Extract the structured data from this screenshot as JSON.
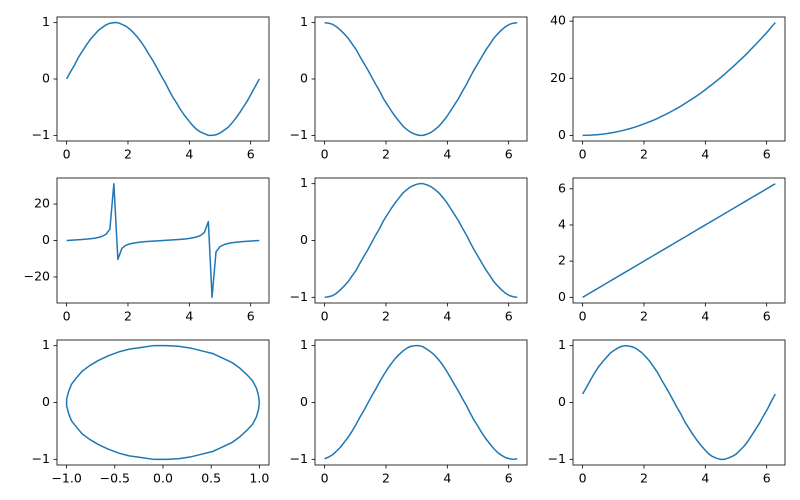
{
  "chart_data": [
    {
      "type": "line",
      "color": "#1f77b4",
      "x": [
        0,
        0.13,
        0.26,
        0.38,
        0.51,
        0.64,
        0.77,
        0.9,
        1.03,
        1.15,
        1.28,
        1.41,
        1.54,
        1.67,
        1.8,
        1.92,
        2.05,
        2.18,
        2.31,
        2.44,
        2.56,
        2.69,
        2.82,
        2.95,
        3.08,
        3.21,
        3.33,
        3.46,
        3.59,
        3.72,
        3.85,
        3.98,
        4.1,
        4.23,
        4.36,
        4.49,
        4.62,
        4.74,
        4.87,
        5.0,
        5.13,
        5.26,
        5.39,
        5.51,
        5.64,
        5.77,
        5.9,
        6.03,
        6.15,
        6.28
      ],
      "values": [
        0,
        0.13,
        0.25,
        0.38,
        0.49,
        0.6,
        0.7,
        0.78,
        0.86,
        0.91,
        0.96,
        0.99,
        1.0,
        1.0,
        0.97,
        0.94,
        0.89,
        0.82,
        0.74,
        0.65,
        0.55,
        0.43,
        0.32,
        0.19,
        0.06,
        -0.06,
        -0.19,
        -0.32,
        -0.43,
        -0.55,
        -0.65,
        -0.74,
        -0.82,
        -0.89,
        -0.94,
        -0.97,
        -1.0,
        -1.0,
        -0.99,
        -0.96,
        -0.91,
        -0.86,
        -0.78,
        -0.7,
        -0.6,
        -0.49,
        -0.38,
        -0.25,
        -0.13,
        0
      ],
      "xlim": [
        -0.314,
        6.597
      ],
      "ylim": [
        -1.1,
        1.1
      ],
      "xticks": [
        0,
        2,
        4,
        6
      ],
      "yticks": [
        {
          "value": -1,
          "label": "−1"
        },
        0,
        1
      ]
    },
    {
      "type": "line",
      "color": "#1f77b4",
      "x": [
        0,
        0.13,
        0.26,
        0.38,
        0.51,
        0.64,
        0.77,
        0.9,
        1.03,
        1.15,
        1.28,
        1.41,
        1.54,
        1.67,
        1.8,
        1.92,
        2.05,
        2.18,
        2.31,
        2.44,
        2.56,
        2.69,
        2.82,
        2.95,
        3.08,
        3.21,
        3.33,
        3.46,
        3.59,
        3.72,
        3.85,
        3.98,
        4.1,
        4.23,
        4.36,
        4.49,
        4.62,
        4.74,
        4.87,
        5.0,
        5.13,
        5.26,
        5.39,
        5.51,
        5.64,
        5.77,
        5.9,
        6.03,
        6.15,
        6.28
      ],
      "values": [
        1,
        0.99,
        0.97,
        0.93,
        0.87,
        0.8,
        0.72,
        0.62,
        0.52,
        0.4,
        0.28,
        0.16,
        0.03,
        -0.1,
        -0.22,
        -0.35,
        -0.46,
        -0.57,
        -0.67,
        -0.76,
        -0.84,
        -0.9,
        -0.95,
        -0.98,
        -1.0,
        -1.0,
        -0.98,
        -0.95,
        -0.9,
        -0.84,
        -0.76,
        -0.67,
        -0.57,
        -0.46,
        -0.35,
        -0.22,
        -0.1,
        0.03,
        0.16,
        0.28,
        0.4,
        0.52,
        0.62,
        0.72,
        0.8,
        0.87,
        0.93,
        0.97,
        0.99,
        1
      ],
      "xlim": [
        -0.314,
        6.597
      ],
      "ylim": [
        -1.1,
        1.1
      ],
      "xticks": [
        0,
        2,
        4,
        6
      ],
      "yticks": [
        {
          "value": -1,
          "label": "−1"
        },
        0,
        1
      ]
    },
    {
      "type": "line",
      "color": "#1f77b4",
      "x": [
        0,
        0.13,
        0.26,
        0.38,
        0.51,
        0.64,
        0.77,
        0.9,
        1.03,
        1.15,
        1.28,
        1.41,
        1.54,
        1.67,
        1.8,
        1.92,
        2.05,
        2.18,
        2.31,
        2.44,
        2.56,
        2.69,
        2.82,
        2.95,
        3.08,
        3.21,
        3.33,
        3.46,
        3.59,
        3.72,
        3.85,
        3.98,
        4.1,
        4.23,
        4.36,
        4.49,
        4.62,
        4.74,
        4.87,
        5.0,
        5.13,
        5.26,
        5.39,
        5.51,
        5.64,
        5.77,
        5.9,
        6.03,
        6.15,
        6.28
      ],
      "values": [
        0,
        0.02,
        0.07,
        0.15,
        0.26,
        0.41,
        0.59,
        0.81,
        1.05,
        1.33,
        1.64,
        1.99,
        2.37,
        2.78,
        3.22,
        3.7,
        4.21,
        4.75,
        5.33,
        5.94,
        6.58,
        7.25,
        7.96,
        8.7,
        9.47,
        10.28,
        11.11,
        11.99,
        12.89,
        13.83,
        14.8,
        15.8,
        16.84,
        17.91,
        19.01,
        20.14,
        21.31,
        22.51,
        23.74,
        25.01,
        26.31,
        27.64,
        29.0,
        30.4,
        31.83,
        33.3,
        34.79,
        36.32,
        37.88,
        39.48
      ],
      "xlim": [
        -0.314,
        6.597
      ],
      "ylim": [
        -1.974,
        41.45
      ],
      "xticks": [
        0,
        2,
        4,
        6
      ],
      "yticks": [
        0,
        20,
        40
      ]
    },
    {
      "type": "line",
      "color": "#1f77b4",
      "x": [
        0,
        0.13,
        0.26,
        0.38,
        0.51,
        0.64,
        0.77,
        0.9,
        1.03,
        1.15,
        1.28,
        1.41,
        1.54,
        1.67,
        1.8,
        1.92,
        2.05,
        2.18,
        2.31,
        2.44,
        2.56,
        2.69,
        2.82,
        2.95,
        3.08,
        3.21,
        3.33,
        3.46,
        3.59,
        3.72,
        3.85,
        3.98,
        4.1,
        4.23,
        4.36,
        4.49,
        4.62,
        4.74,
        4.87,
        5.0,
        5.13,
        5.26,
        5.39,
        5.51,
        5.64,
        5.77,
        5.9,
        6.03,
        6.15,
        6.28
      ],
      "values": [
        0,
        0.13,
        0.26,
        0.4,
        0.56,
        0.75,
        0.97,
        1.25,
        1.65,
        2.26,
        3.37,
        6.19,
        31.18,
        -10.37,
        -4.38,
        -2.72,
        -1.92,
        -1.43,
        -1.1,
        -0.85,
        -0.65,
        -0.48,
        -0.33,
        -0.19,
        -0.06,
        0.06,
        0.19,
        0.33,
        0.48,
        0.65,
        0.85,
        1.1,
        1.43,
        1.92,
        2.72,
        4.38,
        10.37,
        -31.18,
        -6.19,
        -3.37,
        -2.26,
        -1.65,
        -1.25,
        -0.97,
        -0.75,
        -0.56,
        -0.4,
        -0.26,
        -0.13,
        0
      ],
      "xlim": [
        -0.314,
        6.597
      ],
      "ylim": [
        -34.3,
        34.3
      ],
      "xticks": [
        0,
        2,
        4,
        6
      ],
      "yticks": [
        {
          "value": -20,
          "label": "−20"
        },
        0,
        20
      ]
    },
    {
      "type": "line",
      "color": "#1f77b4",
      "x": [
        0,
        0.13,
        0.26,
        0.38,
        0.51,
        0.64,
        0.77,
        0.9,
        1.03,
        1.15,
        1.28,
        1.41,
        1.54,
        1.67,
        1.8,
        1.92,
        2.05,
        2.18,
        2.31,
        2.44,
        2.56,
        2.69,
        2.82,
        2.95,
        3.08,
        3.21,
        3.33,
        3.46,
        3.59,
        3.72,
        3.85,
        3.98,
        4.1,
        4.23,
        4.36,
        4.49,
        4.62,
        4.74,
        4.87,
        5.0,
        5.13,
        5.26,
        5.39,
        5.51,
        5.64,
        5.77,
        5.9,
        6.03,
        6.15,
        6.28
      ],
      "values": [
        -1,
        -0.99,
        -0.97,
        -0.93,
        -0.87,
        -0.8,
        -0.72,
        -0.62,
        -0.52,
        -0.4,
        -0.28,
        -0.16,
        -0.03,
        0.1,
        0.22,
        0.35,
        0.46,
        0.57,
        0.67,
        0.76,
        0.84,
        0.9,
        0.95,
        0.98,
        1.0,
        1.0,
        0.98,
        0.95,
        0.9,
        0.84,
        0.76,
        0.67,
        0.57,
        0.46,
        0.35,
        0.22,
        0.1,
        -0.03,
        -0.16,
        -0.28,
        -0.4,
        -0.52,
        -0.62,
        -0.72,
        -0.8,
        -0.87,
        -0.93,
        -0.97,
        -0.99,
        -1
      ],
      "xlim": [
        -0.314,
        6.597
      ],
      "ylim": [
        -1.1,
        1.1
      ],
      "xticks": [
        0,
        2,
        4,
        6
      ],
      "yticks": [
        {
          "value": -1,
          "label": "−1"
        },
        0,
        1
      ]
    },
    {
      "type": "line",
      "color": "#1f77b4",
      "x": [
        0,
        0.13,
        0.26,
        0.38,
        0.51,
        0.64,
        0.77,
        0.9,
        1.03,
        1.15,
        1.28,
        1.41,
        1.54,
        1.67,
        1.8,
        1.92,
        2.05,
        2.18,
        2.31,
        2.44,
        2.56,
        2.69,
        2.82,
        2.95,
        3.08,
        3.21,
        3.33,
        3.46,
        3.59,
        3.72,
        3.85,
        3.98,
        4.1,
        4.23,
        4.36,
        4.49,
        4.62,
        4.74,
        4.87,
        5.0,
        5.13,
        5.26,
        5.39,
        5.51,
        5.64,
        5.77,
        5.9,
        6.03,
        6.15,
        6.28
      ],
      "values": [
        0,
        0.13,
        0.26,
        0.38,
        0.51,
        0.64,
        0.77,
        0.9,
        1.03,
        1.15,
        1.28,
        1.41,
        1.54,
        1.67,
        1.8,
        1.92,
        2.05,
        2.18,
        2.31,
        2.44,
        2.56,
        2.69,
        2.82,
        2.95,
        3.08,
        3.21,
        3.33,
        3.46,
        3.59,
        3.72,
        3.85,
        3.98,
        4.1,
        4.23,
        4.36,
        4.49,
        4.62,
        4.74,
        4.87,
        5.0,
        5.13,
        5.26,
        5.39,
        5.51,
        5.64,
        5.77,
        5.9,
        6.03,
        6.15,
        6.28
      ],
      "xlim": [
        -0.314,
        6.597
      ],
      "ylim": [
        -0.314,
        6.597
      ],
      "xticks": [
        0,
        2,
        4,
        6
      ],
      "yticks": [
        0,
        2,
        4,
        6
      ]
    },
    {
      "type": "line",
      "color": "#1f77b4",
      "x": [
        1,
        0.99,
        0.97,
        0.93,
        0.87,
        0.8,
        0.72,
        0.62,
        0.52,
        0.4,
        0.28,
        0.16,
        0.03,
        -0.1,
        -0.22,
        -0.35,
        -0.46,
        -0.57,
        -0.67,
        -0.76,
        -0.84,
        -0.9,
        -0.95,
        -0.98,
        -1.0,
        -1.0,
        -0.98,
        -0.95,
        -0.9,
        -0.84,
        -0.76,
        -0.67,
        -0.57,
        -0.46,
        -0.35,
        -0.22,
        -0.1,
        0.03,
        0.16,
        0.28,
        0.4,
        0.52,
        0.62,
        0.72,
        0.8,
        0.87,
        0.93,
        0.97,
        0.99,
        1
      ],
      "values": [
        0,
        0.13,
        0.25,
        0.38,
        0.49,
        0.6,
        0.7,
        0.78,
        0.86,
        0.91,
        0.96,
        0.99,
        1.0,
        1.0,
        0.97,
        0.94,
        0.89,
        0.82,
        0.74,
        0.65,
        0.55,
        0.43,
        0.32,
        0.19,
        0.06,
        -0.06,
        -0.19,
        -0.32,
        -0.43,
        -0.55,
        -0.65,
        -0.74,
        -0.82,
        -0.89,
        -0.94,
        -0.97,
        -1.0,
        -1.0,
        -0.99,
        -0.96,
        -0.91,
        -0.86,
        -0.78,
        -0.7,
        -0.6,
        -0.49,
        -0.38,
        -0.25,
        -0.13,
        0
      ],
      "xlim": [
        -1.1,
        1.1
      ],
      "ylim": [
        -1.1,
        1.1
      ],
      "xticks": [
        {
          "value": -1,
          "label": "−1.0"
        },
        {
          "value": -0.5,
          "label": "−0.5"
        },
        {
          "value": 0,
          "label": "0.0"
        },
        {
          "value": 0.5,
          "label": "0.5"
        },
        {
          "value": 1,
          "label": "1.0"
        }
      ],
      "yticks": [
        {
          "value": -1,
          "label": "−1"
        },
        0,
        1
      ]
    },
    {
      "type": "line",
      "color": "#1f77b4",
      "x": [
        0,
        0.13,
        0.26,
        0.38,
        0.51,
        0.64,
        0.77,
        0.9,
        1.03,
        1.15,
        1.28,
        1.41,
        1.54,
        1.67,
        1.8,
        1.92,
        2.05,
        2.18,
        2.31,
        2.44,
        2.56,
        2.69,
        2.82,
        2.95,
        3.08,
        3.21,
        3.33,
        3.46,
        3.59,
        3.72,
        3.85,
        3.98,
        4.1,
        4.23,
        4.36,
        4.49,
        4.62,
        4.74,
        4.87,
        5.0,
        5.13,
        5.26,
        5.39,
        5.51,
        5.64,
        5.77,
        5.9,
        6.03,
        6.15,
        6.28
      ],
      "values": [
        -0.99,
        -0.96,
        -0.92,
        -0.86,
        -0.79,
        -0.7,
        -0.61,
        -0.5,
        -0.38,
        -0.26,
        -0.14,
        -0.01,
        0.12,
        0.24,
        0.37,
        0.48,
        0.59,
        0.69,
        0.78,
        0.85,
        0.91,
        0.96,
        0.99,
        1.0,
        1.0,
        0.98,
        0.94,
        0.89,
        0.83,
        0.75,
        0.66,
        0.55,
        0.44,
        0.32,
        0.2,
        0.07,
        -0.05,
        -0.18,
        -0.31,
        -0.42,
        -0.54,
        -0.64,
        -0.73,
        -0.81,
        -0.88,
        -0.93,
        -0.97,
        -0.99,
        -1.0,
        -0.99
      ],
      "xlim": [
        -0.314,
        6.597
      ],
      "ylim": [
        -1.1,
        1.1
      ],
      "xticks": [
        0,
        2,
        4,
        6
      ],
      "yticks": [
        {
          "value": -1,
          "label": "−1"
        },
        0,
        1
      ]
    },
    {
      "type": "line",
      "color": "#1f77b4",
      "x": [
        0,
        0.13,
        0.26,
        0.38,
        0.51,
        0.64,
        0.77,
        0.9,
        1.03,
        1.15,
        1.28,
        1.41,
        1.54,
        1.67,
        1.8,
        1.92,
        2.05,
        2.18,
        2.31,
        2.44,
        2.56,
        2.69,
        2.82,
        2.95,
        3.08,
        3.21,
        3.33,
        3.46,
        3.59,
        3.72,
        3.85,
        3.98,
        4.1,
        4.23,
        4.36,
        4.49,
        4.62,
        4.74,
        4.87,
        5.0,
        5.13,
        5.26,
        5.39,
        5.51,
        5.64,
        5.77,
        5.9,
        6.03,
        6.15,
        6.28
      ],
      "values": [
        0.15,
        0.27,
        0.4,
        0.51,
        0.62,
        0.71,
        0.79,
        0.87,
        0.92,
        0.96,
        0.99,
        1.0,
        0.99,
        0.97,
        0.93,
        0.88,
        0.81,
        0.73,
        0.63,
        0.53,
        0.41,
        0.29,
        0.17,
        0.04,
        -0.09,
        -0.21,
        -0.34,
        -0.45,
        -0.56,
        -0.66,
        -0.75,
        -0.83,
        -0.9,
        -0.95,
        -0.98,
        -1.0,
        -1.0,
        -0.98,
        -0.95,
        -0.91,
        -0.84,
        -0.77,
        -0.68,
        -0.58,
        -0.47,
        -0.36,
        -0.23,
        -0.11,
        0.02,
        0.15
      ],
      "xlim": [
        -0.314,
        6.597
      ],
      "ylim": [
        -1.1,
        1.1
      ],
      "xticks": [
        0,
        2,
        4,
        6
      ],
      "yticks": [
        {
          "value": -1,
          "label": "−1"
        },
        0,
        1
      ]
    }
  ]
}
